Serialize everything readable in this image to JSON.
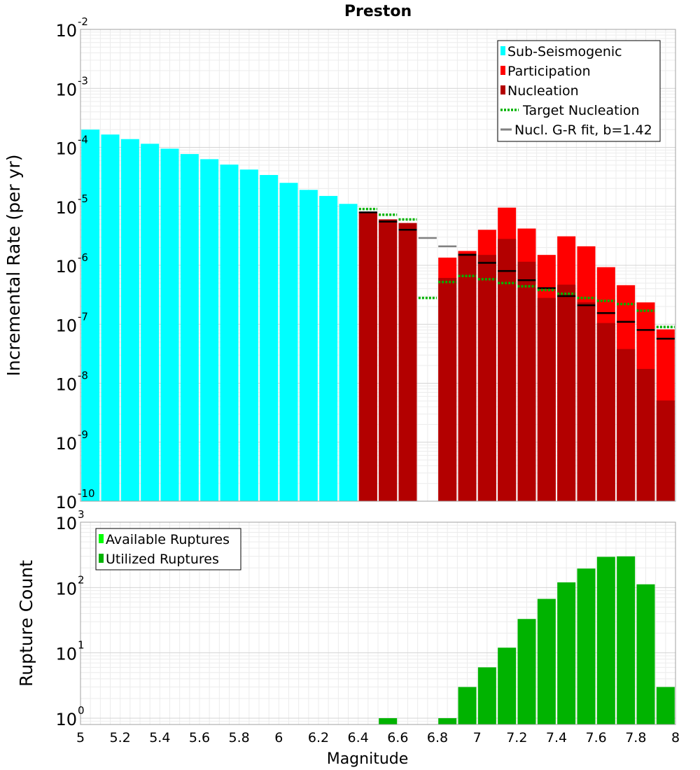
{
  "chart_data": [
    {
      "type": "bar",
      "title": "Preston",
      "xlabel": "",
      "ylabel": "Incremental Rate (per yr)",
      "yscale": "log",
      "xlim": [
        5,
        8
      ],
      "ylim": [
        1e-10,
        0.01
      ],
      "grid": true,
      "y_tick_labels": [
        {
          "base": "10",
          "exp": "-10"
        },
        {
          "base": "10",
          "exp": "-9"
        },
        {
          "base": "10",
          "exp": "-8"
        },
        {
          "base": "10",
          "exp": "-7"
        },
        {
          "base": "10",
          "exp": "-6"
        },
        {
          "base": "10",
          "exp": "-5"
        },
        {
          "base": "10",
          "exp": "-4"
        },
        {
          "base": "10",
          "exp": "-3"
        },
        {
          "base": "10",
          "exp": "-2"
        }
      ],
      "legend_position": "top-right",
      "legend": [
        {
          "label": "Sub-Seismogenic",
          "color": "#00ffff",
          "style": "box"
        },
        {
          "label": "Participation",
          "color": "#ff0000",
          "style": "box"
        },
        {
          "label": "Nucleation",
          "color": "#b30000",
          "style": "box"
        },
        {
          "label": "Target Nucleation",
          "color": "#00b300",
          "style": "dotted"
        },
        {
          "label": "Nucl. G-R fit, b=1.42",
          "color": "#808080",
          "style": "line"
        }
      ],
      "series": [
        {
          "key": "sub_seismogenic",
          "color": "#00ffff",
          "x": [
            5.05,
            5.15,
            5.25,
            5.35,
            5.45,
            5.55,
            5.65,
            5.75,
            5.85,
            5.95,
            6.05,
            6.15,
            6.25,
            6.35
          ],
          "values": [
            0.0002,
            0.000165,
            0.000138,
            0.000115,
            9.5e-05,
            7.7e-05,
            6.3e-05,
            5.1e-05,
            4.2e-05,
            3.4e-05,
            2.5e-05,
            1.9e-05,
            1.5e-05,
            1.1e-05
          ]
        },
        {
          "key": "participation",
          "color": "#ff0000",
          "x": [
            6.45,
            6.55,
            6.65,
            6.85,
            6.95,
            7.05,
            7.15,
            7.25,
            7.35,
            7.45,
            7.55,
            7.65,
            7.75,
            7.85,
            7.95
          ],
          "values": [
            8e-06,
            6e-06,
            5.2e-06,
            1.35e-06,
            1.75e-06,
            4e-06,
            9.5e-06,
            4.2e-06,
            1.5e-06,
            3.1e-06,
            2.1e-06,
            9.3e-07,
            4.6e-07,
            2.35e-07,
            8.2e-08
          ]
        },
        {
          "key": "nucleation",
          "color": "#b30000",
          "x": [
            6.45,
            6.55,
            6.65,
            6.85,
            6.95,
            7.05,
            7.15,
            7.25,
            7.35,
            7.45,
            7.55,
            7.65,
            7.75,
            7.85,
            7.95
          ],
          "values": [
            8e-06,
            6e-06,
            5.2e-06,
            6.1e-07,
            1.6e-06,
            1.5e-06,
            2.8e-06,
            1.15e-06,
            2.8e-07,
            4.7e-07,
            2.35e-07,
            1.05e-07,
            3.8e-08,
            1.75e-08,
            5.1e-09
          ]
        },
        {
          "key": "target_nucleation",
          "color": "#00b300",
          "x": [
            6.45,
            6.55,
            6.65,
            6.75,
            6.85,
            6.95,
            7.05,
            7.15,
            7.25,
            7.35,
            7.45,
            7.55,
            7.65,
            7.75,
            7.85,
            7.95
          ],
          "values": [
            9e-06,
            7.2e-06,
            6e-06,
            2.8e-07,
            5.2e-07,
            6.6e-07,
            5.8e-07,
            5e-07,
            4.4e-07,
            3.8e-07,
            3.3e-07,
            2.8e-07,
            2.5e-07,
            2.2e-07,
            1.7e-07,
            9e-08
          ]
        },
        {
          "key": "gr_fit",
          "color": "#808080",
          "x": [
            6.75,
            6.85
          ],
          "values": [
            2.9e-06,
            2.1e-06
          ]
        },
        {
          "key": "gr_fit_black",
          "color": "#000000",
          "x": [
            6.45,
            6.55,
            6.65,
            6.95,
            7.05,
            7.15,
            7.25,
            7.35,
            7.45,
            7.55,
            7.65,
            7.75,
            7.85,
            7.95
          ],
          "values": [
            7.9e-06,
            5.5e-06,
            4e-06,
            1.5e-06,
            1.1e-06,
            8e-07,
            5.6e-07,
            4.1e-07,
            3e-07,
            2.1e-07,
            1.55e-07,
            1.1e-07,
            8e-08,
            5.7e-08
          ]
        }
      ]
    },
    {
      "type": "bar",
      "title": "",
      "xlabel": "Magnitude",
      "ylabel": "Rupture Count",
      "yscale": "log",
      "xlim": [
        5,
        8
      ],
      "ylim": [
        0.8,
        1000
      ],
      "grid": true,
      "x_tick_labels": [
        "5",
        "5.2",
        "5.4",
        "5.6",
        "5.8",
        "6",
        "6.2",
        "6.4",
        "6.6",
        "6.8",
        "7",
        "7.2",
        "7.4",
        "7.6",
        "7.8",
        "8"
      ],
      "y_tick_labels": [
        {
          "base": "10",
          "exp": "0"
        },
        {
          "base": "10",
          "exp": "1"
        },
        {
          "base": "10",
          "exp": "2"
        },
        {
          "base": "10",
          "exp": "3"
        }
      ],
      "legend_position": "top-left",
      "legend": [
        {
          "label": "Available Ruptures",
          "color": "#00ff00",
          "style": "box"
        },
        {
          "label": "Utilized Ruptures",
          "color": "#00b300",
          "style": "box"
        }
      ],
      "series": [
        {
          "key": "utilized",
          "color": "#00b300",
          "x": [
            6.55,
            6.85,
            6.95,
            7.05,
            7.15,
            7.25,
            7.35,
            7.45,
            7.55,
            7.65,
            7.75,
            7.85,
            7.95
          ],
          "values": [
            1,
            1,
            3,
            6,
            12,
            33,
            67,
            120,
            195,
            295,
            300,
            112,
            3
          ]
        }
      ]
    }
  ]
}
